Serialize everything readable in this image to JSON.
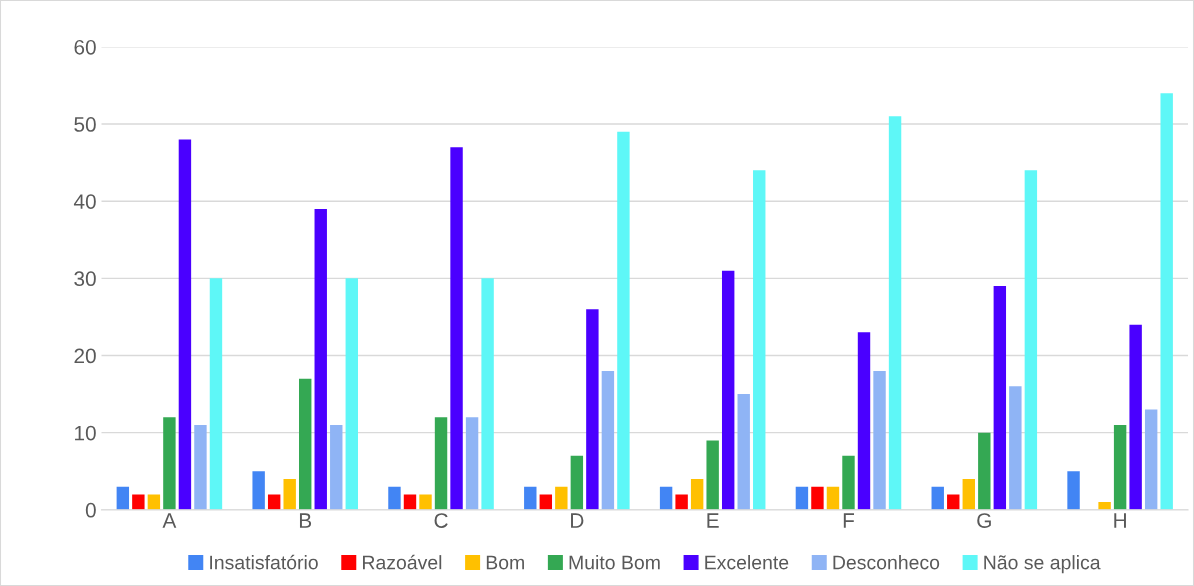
{
  "chart_data": {
    "type": "bar",
    "categories": [
      "A",
      "B",
      "C",
      "D",
      "E",
      "F",
      "G",
      "H"
    ],
    "series": [
      {
        "name": "Insatisfatório",
        "color": "#4285f4",
        "values": [
          3,
          5,
          3,
          3,
          3,
          3,
          3,
          5
        ]
      },
      {
        "name": "Razoável",
        "color": "#ff0000",
        "values": [
          2,
          2,
          2,
          2,
          2,
          3,
          2,
          0
        ]
      },
      {
        "name": "Bom",
        "color": "#ffc000",
        "values": [
          2,
          4,
          2,
          3,
          4,
          3,
          4,
          1
        ]
      },
      {
        "name": "Muito Bom",
        "color": "#34a853",
        "values": [
          12,
          17,
          12,
          7,
          9,
          7,
          10,
          11
        ]
      },
      {
        "name": "Excelente",
        "color": "#4a00ff",
        "values": [
          48,
          39,
          47,
          26,
          31,
          23,
          29,
          24
        ]
      },
      {
        "name": "Desconheco",
        "color": "#8fb4f5",
        "values": [
          11,
          11,
          12,
          18,
          15,
          18,
          16,
          13
        ]
      },
      {
        "name": "Não se aplica",
        "color": "#5ef7f7",
        "values": [
          30,
          30,
          30,
          49,
          44,
          51,
          44,
          54
        ]
      }
    ],
    "ylim": [
      0,
      60
    ],
    "yticks": [
      0,
      10,
      20,
      30,
      40,
      50,
      60
    ],
    "grid": "y",
    "legend": "bottom"
  }
}
